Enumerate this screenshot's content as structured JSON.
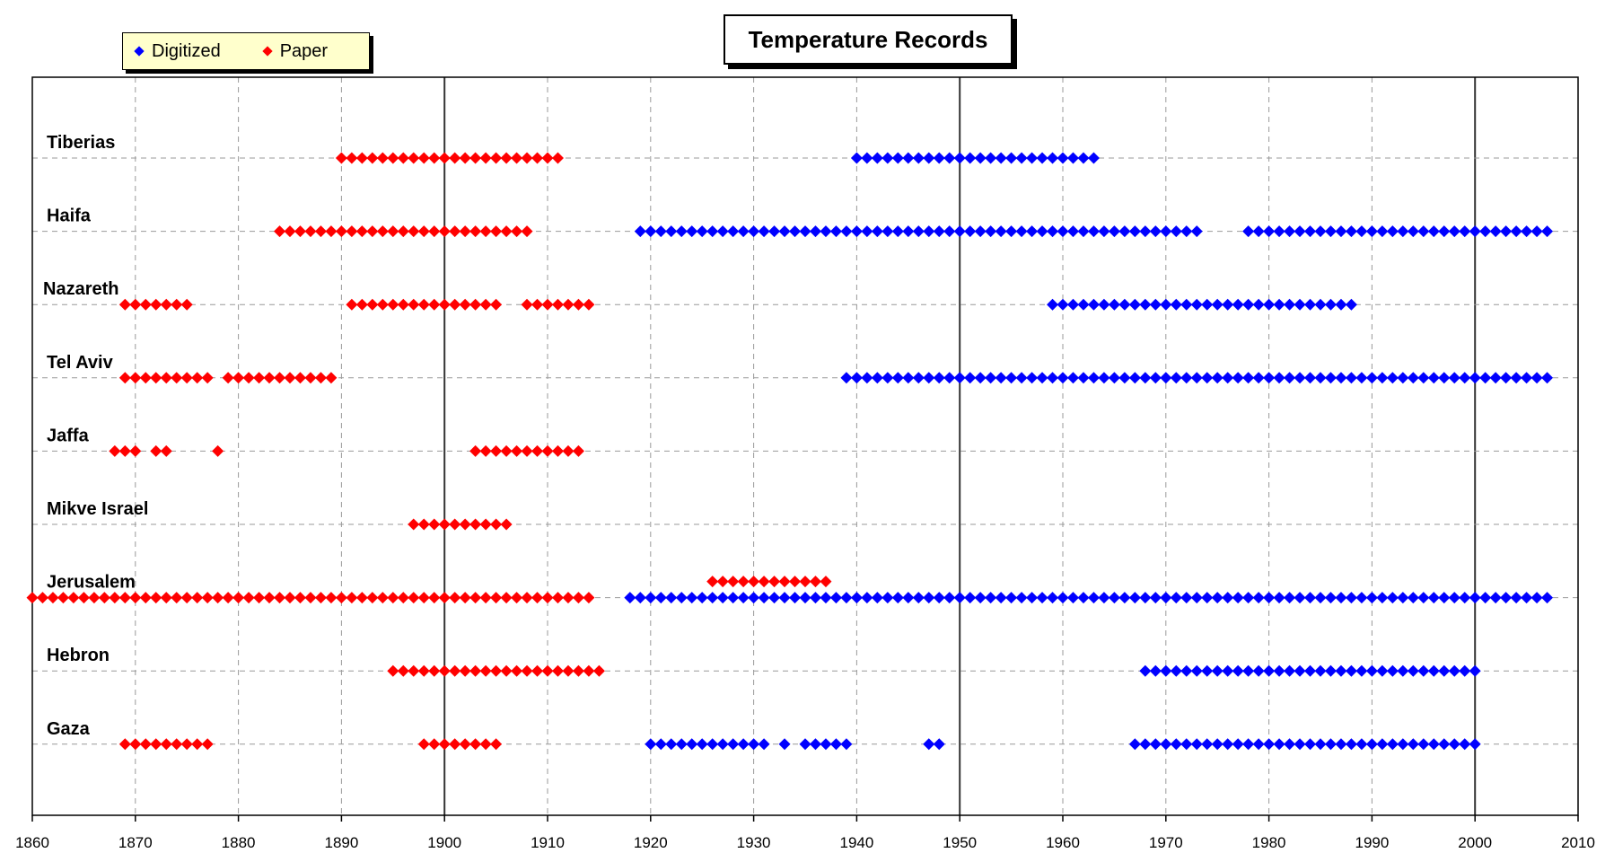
{
  "chart_data": {
    "type": "scatter",
    "title": "Temperature Records",
    "xlim": [
      1860,
      2010
    ],
    "x_ticks": [
      1860,
      1870,
      1880,
      1890,
      1900,
      1910,
      1920,
      1930,
      1940,
      1950,
      1960,
      1970,
      1980,
      1990,
      2000,
      2010
    ],
    "major_vertical_lines": [
      1900,
      1950,
      2000
    ],
    "grid": true,
    "legend_position": "top-left",
    "categories": [
      "Tiberias",
      "Haifa",
      "Nazareth",
      "Tel Aviv",
      "Jaffa",
      "Mikve Israel",
      "Jerusalem",
      "Hebron",
      "Gaza"
    ],
    "series": [
      {
        "name": "Digitized",
        "color": "#0000ff",
        "ranges": {
          "Tiberias": [
            [
              1940,
              1963
            ]
          ],
          "Haifa": [
            [
              1919,
              1973
            ],
            [
              1978,
              2007
            ]
          ],
          "Nazareth": [
            [
              1959,
              1988
            ]
          ],
          "Tel Aviv": [
            [
              1939,
              2007
            ]
          ],
          "Jerusalem": [
            [
              1918,
              2007
            ]
          ],
          "Hebron": [
            [
              1968,
              2000
            ]
          ],
          "Gaza": [
            [
              1920,
              1931
            ],
            [
              1933,
              1933
            ],
            [
              1935,
              1939
            ],
            [
              1947,
              1948
            ],
            [
              1967,
              2000
            ]
          ]
        }
      },
      {
        "name": "Paper",
        "color": "#ff0000",
        "ranges": {
          "Tiberias": [
            [
              1890,
              1911
            ]
          ],
          "Haifa": [
            [
              1884,
              1908
            ]
          ],
          "Nazareth": [
            [
              1869,
              1875
            ],
            [
              1891,
              1905
            ],
            [
              1908,
              1914
            ]
          ],
          "Tel Aviv": [
            [
              1869,
              1877
            ],
            [
              1879,
              1889
            ]
          ],
          "Jaffa": [
            [
              1868,
              1870
            ],
            [
              1872,
              1873
            ],
            [
              1878,
              1878
            ],
            [
              1903,
              1913
            ]
          ],
          "Mikve Israel": [
            [
              1897,
              1906
            ]
          ],
          "Jerusalem": [
            [
              1860,
              1914
            ],
            [
              1926,
              1937
            ]
          ],
          "Hebron": [
            [
              1895,
              1915
            ]
          ],
          "Gaza": [
            [
              1869,
              1877
            ],
            [
              1898,
              1905
            ]
          ]
        }
      }
    ]
  }
}
